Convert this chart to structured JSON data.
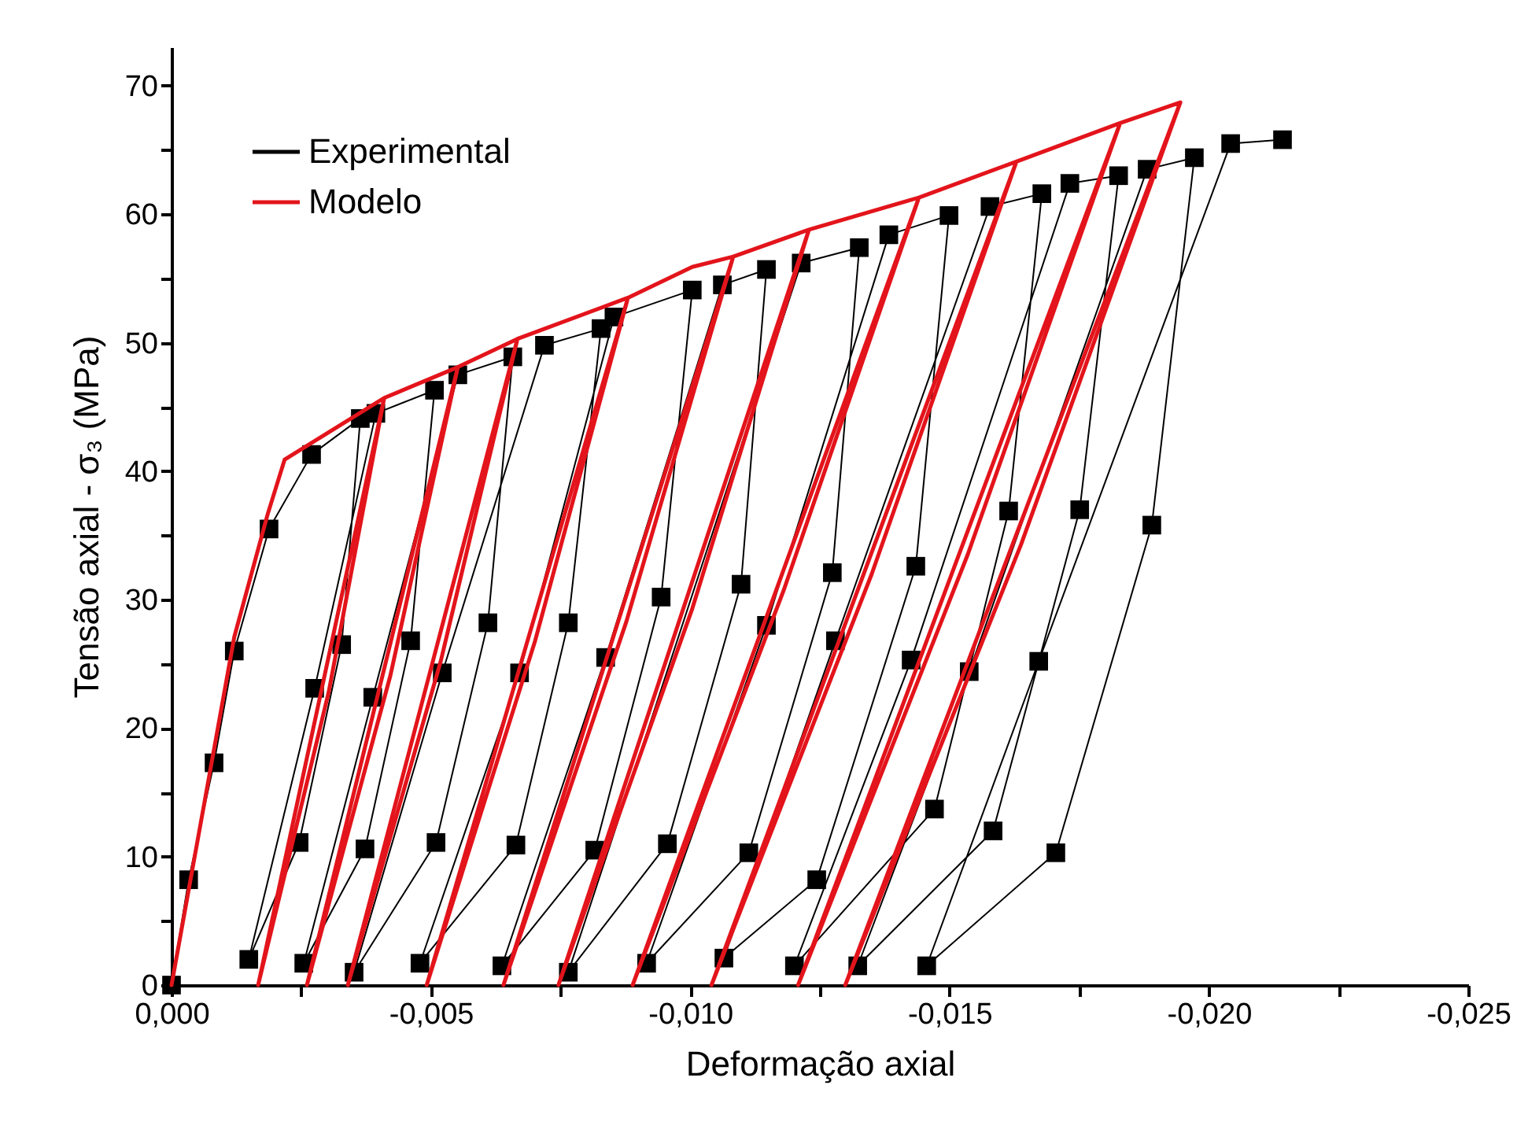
{
  "chart_data": {
    "type": "line",
    "xlabel": "Deformação axial",
    "ylabel": "Tensão axial - σ₃ (MPa)",
    "xlim": [
      0,
      -0.025
    ],
    "ylim": [
      0,
      73
    ],
    "xticks": [
      {
        "value": 0,
        "label": "0,000"
      },
      {
        "value": -0.0025,
        "label": null
      },
      {
        "value": -0.005,
        "label": "-0,005"
      },
      {
        "value": -0.0075,
        "label": null
      },
      {
        "value": -0.01,
        "label": "-0,010"
      },
      {
        "value": -0.0125,
        "label": null
      },
      {
        "value": -0.015,
        "label": "-0,015"
      },
      {
        "value": -0.0175,
        "label": null
      },
      {
        "value": -0.02,
        "label": "-0,020"
      },
      {
        "value": -0.0225,
        "label": null
      },
      {
        "value": -0.025,
        "label": "-0,025"
      }
    ],
    "yticks": [
      0,
      {
        "value": 5,
        "label": null
      },
      10,
      {
        "value": 15,
        "label": null
      },
      20,
      {
        "value": 25,
        "label": null
      },
      30,
      {
        "value": 35,
        "label": null
      },
      40,
      {
        "value": 45,
        "label": null
      },
      50,
      {
        "value": 55,
        "label": null
      },
      60,
      {
        "value": 65,
        "label": null
      },
      70
    ],
    "grid": false,
    "legend": "top left",
    "line_style": "solid",
    "series": [
      {
        "name": "Experimental",
        "color": "#000000",
        "marker": "square",
        "x": [
          0,
          -0.00033,
          -0.00082,
          -0.00121,
          -0.00188,
          -0.0027,
          -0.00364,
          -0.00328,
          -0.00246,
          -0.00149,
          -0.00276,
          -0.00394,
          -0.00507,
          -0.00461,
          -0.00373,
          -0.00255,
          -0.00388,
          -0.00552,
          -0.00658,
          -0.0061,
          -0.0051,
          -0.00352,
          -0.00522,
          -0.00719,
          -0.00828,
          -0.00765,
          -0.00664,
          -0.00479,
          -0.00671,
          -0.00853,
          -0.01004,
          -0.00944,
          -0.00816,
          -0.00637,
          -0.00837,
          -0.01062,
          -0.01147,
          -0.01098,
          -0.00956,
          -0.00765,
          -0.01214,
          -0.01326,
          -0.01274,
          -0.01113,
          -0.00916,
          -0.01147,
          -0.01383,
          -0.01499,
          -0.01435,
          -0.01244,
          -0.01065,
          -0.0128,
          -0.01578,
          -0.01678,
          -0.01614,
          -0.01471,
          -0.01201,
          -0.01426,
          -0.01732,
          -0.01826,
          -0.01751,
          -0.01584,
          -0.01323,
          -0.01538,
          -0.01881,
          -0.01972,
          -0.0189,
          -0.01705,
          -0.01456,
          -0.01672,
          -0.02042,
          -0.02142
        ],
        "values": [
          0,
          8.2,
          17.3,
          26.0,
          35.5,
          41.3,
          44.1,
          26.5,
          11.1,
          2.0,
          23.1,
          44.5,
          46.3,
          26.8,
          10.6,
          1.7,
          22.4,
          47.5,
          48.9,
          28.2,
          11.1,
          1.0,
          24.3,
          49.8,
          51.1,
          28.2,
          10.9,
          1.7,
          24.3,
          52.0,
          54.1,
          30.2,
          10.5,
          1.5,
          25.5,
          54.5,
          55.7,
          31.2,
          11.0,
          1.0,
          56.2,
          57.4,
          32.1,
          10.3,
          1.7,
          28.0,
          58.4,
          59.9,
          32.6,
          8.2,
          2.1,
          26.8,
          60.6,
          61.6,
          36.9,
          13.7,
          1.5,
          25.3,
          62.4,
          63.0,
          37.0,
          12.0,
          1.5,
          24.4,
          63.5,
          64.4,
          35.8,
          10.3,
          1.5,
          25.2,
          65.5,
          65.8
        ]
      },
      {
        "name": "Modelo",
        "color": "#e3141b",
        "marker": "none",
        "x": [
          0,
          -0.00121,
          -0.00185,
          -0.00218,
          -0.0041,
          -0.00167,
          -0.00303,
          -0.0041,
          -0.00552,
          -0.00261,
          -0.00422,
          -0.00552,
          -0.00667,
          -0.0034,
          -0.00519,
          -0.00667,
          -0.0088,
          -0.00492,
          -0.00701,
          -0.0088,
          -0.01004,
          -0.01083,
          -0.0064,
          -0.00877,
          -0.01083,
          -0.01229,
          -0.00746,
          -0.01004,
          -0.01229,
          -0.01441,
          -0.00889,
          -0.0118,
          -0.01441,
          -0.01629,
          -0.01041,
          -0.0135,
          -0.01629,
          -0.01829,
          -0.01208,
          -0.01535,
          -0.01829,
          -0.01945,
          -0.01299,
          -0.01638,
          -0.01945
        ],
        "values": [
          0,
          27.1,
          36.6,
          40.9,
          45.7,
          0,
          22.8,
          45.7,
          48.1,
          0,
          24.1,
          48.1,
          50.3,
          0,
          25.2,
          50.3,
          53.5,
          0,
          26.8,
          53.5,
          55.9,
          56.7,
          0,
          28.3,
          56.7,
          58.8,
          0,
          29.3,
          58.8,
          61.3,
          0,
          30.7,
          61.3,
          64.1,
          0,
          32.0,
          64.1,
          67.1,
          0,
          33.5,
          67.1,
          68.7,
          0,
          34.3,
          68.7
        ]
      }
    ]
  }
}
